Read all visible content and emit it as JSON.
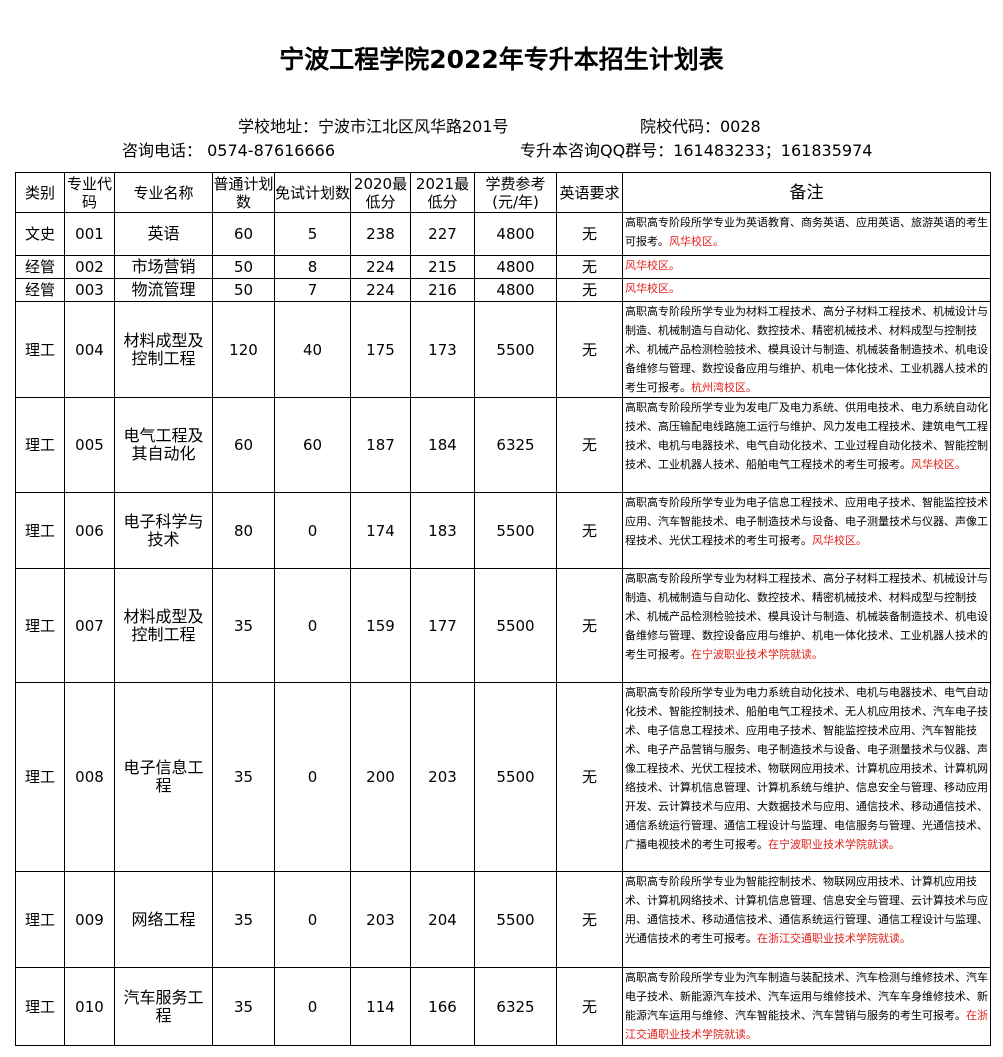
{
  "title": "宁波工程学院2022年专升本招生计划表",
  "info": {
    "address": "学校地址：宁波市江北区风华路201号",
    "code": "院校代码：0028",
    "phone": "咨询电话： 0574-87616666",
    "qq": "专升本咨询QQ群号：161483233；161835974"
  },
  "headers": [
    "类别",
    "专业代码",
    "专业名称",
    "普通计划数",
    "免试计划数",
    "2020最低分",
    "2021最低分",
    "学费参考(元/年)",
    "英语要求",
    "备注"
  ],
  "colors": {
    "remark_highlight": "#e0201a"
  },
  "rows": [
    {
      "cat": "文史",
      "code": "001",
      "name": "英语",
      "plan": "60",
      "exempt": "5",
      "s2020": "238",
      "s2021": "227",
      "fee": "4800",
      "eng": "无",
      "remark": "高职高专阶段所学专业为英语教育、商务英语、应用英语、旅游英语的考生可报考。",
      "campus": "风华校区。"
    },
    {
      "cat": "经管",
      "code": "002",
      "name": "市场营销",
      "plan": "50",
      "exempt": "8",
      "s2020": "224",
      "s2021": "215",
      "fee": "4800",
      "eng": "无",
      "remark": "",
      "campus": "风华校区。"
    },
    {
      "cat": "经管",
      "code": "003",
      "name": "物流管理",
      "plan": "50",
      "exempt": "7",
      "s2020": "224",
      "s2021": "216",
      "fee": "4800",
      "eng": "无",
      "remark": "",
      "campus": "风华校区。"
    },
    {
      "cat": "理工",
      "code": "004",
      "name": "材料成型及控制工程",
      "plan": "120",
      "exempt": "40",
      "s2020": "175",
      "s2021": "173",
      "fee": "5500",
      "eng": "无",
      "remark": "高职高专阶段所学专业为材料工程技术、高分子材料工程技术、机械设计与制造、机械制造与自动化、数控技术、精密机械技术、材料成型与控制技术、机械产品检测检验技术、模具设计与制造、机械装备制造技术、机电设备维修与管理、数控设备应用与维护、机电一体化技术、工业机器人技术的考生可报考。",
      "campus": "杭州湾校区。"
    },
    {
      "cat": "理工",
      "code": "005",
      "name": "电气工程及其自动化",
      "plan": "60",
      "exempt": "60",
      "s2020": "187",
      "s2021": "184",
      "fee": "6325",
      "eng": "无",
      "remark": "高职高专阶段所学专业为发电厂及电力系统、供用电技术、电力系统自动化技术、高压输配电线路施工运行与维护、风力发电工程技术、建筑电气工程技术、电机与电器技术、电气自动化技术、工业过程自动化技术、智能控制技术、工业机器人技术、船舶电气工程技术的考生可报考。",
      "campus": "风华校区。"
    },
    {
      "cat": "理工",
      "code": "006",
      "name": "电子科学与技术",
      "plan": "80",
      "exempt": "0",
      "s2020": "174",
      "s2021": "183",
      "fee": "5500",
      "eng": "无",
      "remark": "高职高专阶段所学专业为电子信息工程技术、应用电子技术、智能监控技术应用、汽车智能技术、电子制造技术与设备、电子测量技术与仪器、声像工程技术、光伏工程技术的考生可报考。",
      "campus": "风华校区。"
    },
    {
      "cat": "理工",
      "code": "007",
      "name": "材料成型及控制工程",
      "plan": "35",
      "exempt": "0",
      "s2020": "159",
      "s2021": "177",
      "fee": "5500",
      "eng": "无",
      "remark": "高职高专阶段所学专业为材料工程技术、高分子材料工程技术、机械设计与制造、机械制造与自动化、数控技术、精密机械技术、材料成型与控制技术、机械产品检测检验技术、模具设计与制造、机械装备制造技术、机电设备维修与管理、数控设备应用与维护、机电一体化技术、工业机器人技术的考生可报考。",
      "campus": "在宁波职业技术学院就读。"
    },
    {
      "cat": "理工",
      "code": "008",
      "name": "电子信息工程",
      "plan": "35",
      "exempt": "0",
      "s2020": "200",
      "s2021": "203",
      "fee": "5500",
      "eng": "无",
      "remark": "高职高专阶段所学专业为电力系统自动化技术、电机与电器技术、电气自动化技术、智能控制技术、船舶电气工程技术、无人机应用技术、汽车电子技术、电子信息工程技术、应用电子技术、智能监控技术应用、汽车智能技术、电子产品营销与服务、电子制造技术与设备、电子测量技术与仪器、声像工程技术、光伏工程技术、物联网应用技术、计算机应用技术、计算机网络技术、计算机信息管理、计算机系统与维护、信息安全与管理、移动应用开发、云计算技术与应用、大数据技术与应用、通信技术、移动通信技术、通信系统运行管理、通信工程设计与监理、电信服务与管理、光通信技术、广播电视技术的考生可报考。",
      "campus": "在宁波职业技术学院就读。"
    },
    {
      "cat": "理工",
      "code": "009",
      "name": "网络工程",
      "plan": "35",
      "exempt": "0",
      "s2020": "203",
      "s2021": "204",
      "fee": "5500",
      "eng": "无",
      "remark": "高职高专阶段所学专业为智能控制技术、物联网应用技术、计算机应用技术、计算机网络技术、计算机信息管理、信息安全与管理、云计算技术与应用、通信技术、移动通信技术、通信系统运行管理、通信工程设计与监理、光通信技术的考生可报考。",
      "campus": "在浙江交通职业技术学院就读。"
    },
    {
      "cat": "理工",
      "code": "010",
      "name": "汽车服务工程",
      "plan": "35",
      "exempt": "0",
      "s2020": "114",
      "s2021": "166",
      "fee": "6325",
      "eng": "无",
      "remark": "高职高专阶段所学专业为汽车制造与装配技术、汽车检测与维修技术、汽车电子技术、新能源汽车技术、汽车运用与维修技术、汽车车身维修技术、新能源汽车运用与维修、汽车智能技术、汽车营销与服务的考生可报考。",
      "campus": "在浙江交通职业技术学院就读。"
    }
  ]
}
